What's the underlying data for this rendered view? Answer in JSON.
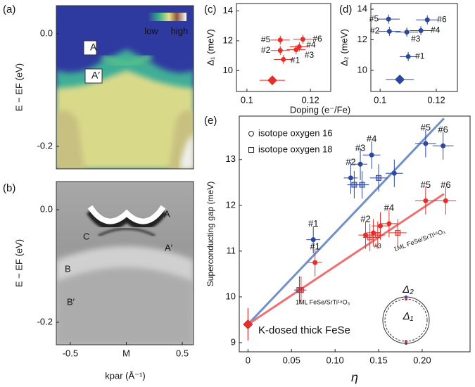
{
  "chart_data": [
    {
      "type": "image",
      "label": "(a)",
      "ylabel": "E − EF (eV)",
      "xlim": [
        -0.625,
        0.6
      ],
      "ylim": [
        -0.24,
        0.05
      ],
      "yticks": [
        {
          "value": 0,
          "label": "0.0"
        },
        {
          "value": -0.2,
          "label": "-0.2"
        }
      ],
      "annotations": [
        {
          "text": "A",
          "color": "#1a2a8a"
        },
        {
          "text": "A′",
          "color": "#1a2a8a"
        }
      ],
      "colorbar": [
        "low",
        "high"
      ]
    },
    {
      "type": "image",
      "label": "(b)",
      "ylabel": "E − EF (eV)",
      "xlabel": "kpar (Å⁻¹)",
      "xlim": [
        -0.625,
        0.6
      ],
      "ylim": [
        -0.24,
        0.05
      ],
      "xticks": [
        {
          "value": -0.5,
          "label": "-0.5"
        },
        {
          "value": 0,
          "label": "M"
        },
        {
          "value": 0.5,
          "label": "0.5"
        }
      ],
      "yticks": [
        {
          "value": 0,
          "label": "0.0"
        },
        {
          "value": -0.2,
          "label": "-0.2"
        }
      ],
      "annotations": [
        {
          "text": "A",
          "color": "#3a4fb0"
        },
        {
          "text": "A′",
          "color": "#3a4fb0"
        },
        {
          "text": "C",
          "color": "#e6d21c"
        },
        {
          "text": "B",
          "color": "#d8322a"
        },
        {
          "text": "B′",
          "color": "#d8322a"
        }
      ]
    },
    {
      "type": "scatter",
      "label": "(c)",
      "ylabel": "Δ₁ (meV)",
      "xlabel": "Doping (e⁻/Fe)",
      "xlim": [
        0.0967,
        0.1264
      ],
      "ylim": [
        8.6,
        14.5
      ],
      "xticks": [
        0.1,
        0.12
      ],
      "yticks": [
        10,
        12,
        14
      ],
      "series": [
        {
          "color": "#e3302a",
          "x": [
            0.1105,
            0.1176,
            0.1105,
            0.1165,
            0.1155,
            0.1115,
            0.108
          ],
          "values": [
            12.05,
            12.1,
            11.35,
            11.6,
            11.4,
            10.75,
            9.35
          ],
          "xerr": [
            0.003,
            0.003,
            0.003,
            0.003,
            0.003,
            0.003,
            0.004
          ],
          "yerr": [
            0.3,
            0.3,
            0.3,
            0.3,
            0.3,
            0.3,
            0.15
          ],
          "markers": [
            "circle",
            "circle",
            "circle",
            "circle",
            "circle",
            "circle",
            "diamond"
          ],
          "point_labels": [
            "#5",
            "#6",
            "#2",
            "#4",
            "#3",
            "#1",
            null
          ]
        }
      ]
    },
    {
      "type": "scatter",
      "label": "(d)",
      "ylabel": "Δ₂ (meV)",
      "xlim": [
        0.0967,
        0.1275
      ],
      "ylim": [
        8.62,
        14.37
      ],
      "xticks": [
        0.1,
        0.12
      ],
      "yticks": [
        10,
        12,
        14
      ],
      "series": [
        {
          "color": "#2c479c",
          "x": [
            0.103,
            0.1168,
            0.1033,
            0.1145,
            0.1095,
            0.11,
            0.107
          ],
          "values": [
            13.35,
            13.3,
            12.55,
            12.6,
            12.5,
            10.9,
            9.4
          ],
          "xerr": [
            0.004,
            0.004,
            0.004,
            0.004,
            0.004,
            0.003,
            0.005
          ],
          "yerr": [
            0.3,
            0.3,
            0.3,
            0.3,
            0.3,
            0.3,
            0.15
          ],
          "markers": [
            "circle",
            "circle",
            "circle",
            "circle",
            "circle",
            "circle",
            "diamond"
          ],
          "point_labels": [
            "#5",
            "#6",
            "#2",
            "#4",
            "#3",
            "#1",
            null
          ]
        }
      ]
    },
    {
      "type": "scatter",
      "label": "(e)",
      "ylabel": "Superconducting gap (meV)",
      "xlabel": "η",
      "xlim": [
        -0.01,
        0.255
      ],
      "ylim": [
        8.8,
        13.95
      ],
      "xticks": [
        0,
        0.05,
        {
          "value": 0.1,
          "label": "0.10"
        },
        0.15,
        {
          "value": 0.2,
          "label": "0.20"
        }
      ],
      "yticks": [
        9,
        10,
        11,
        12,
        13
      ],
      "legend": [
        {
          "label": "isotope oxygen 16",
          "marker": "circle"
        },
        {
          "label": "isotope oxygen 18",
          "marker": "square"
        }
      ],
      "annotations": [
        "1ML FeSe/SrTi¹⁶O₃",
        "1ML FeSe/SrTi¹⁸O₃",
        "K-dosed thick FeSe"
      ],
      "series": [
        {
          "name": "Δ₂",
          "color": "#2c479c",
          "x": [
            0,
            0.059,
            0.075,
            0.118,
            0.122,
            0.129,
            0.131,
            0.142,
            0.15,
            0.168,
            0.204,
            0.224
          ],
          "values": [
            9.4,
            10.15,
            11.25,
            12.6,
            12.45,
            12.9,
            12.45,
            13.1,
            12.6,
            12.7,
            13.35,
            13.3
          ],
          "xerr": [
            0.002,
            0.006,
            0.008,
            0.008,
            0.008,
            0.008,
            0.008,
            0.01,
            0.01,
            0.01,
            0.012,
            0.012
          ],
          "yerr": [
            0.35,
            0.3,
            0.3,
            0.35,
            0.3,
            0.35,
            0.3,
            0.3,
            0.3,
            0.3,
            0.3,
            0.3
          ],
          "markers": [
            "diamond",
            "square",
            "circle",
            "circle",
            "square",
            "circle",
            "square",
            "circle",
            "square",
            "circle",
            "circle",
            "circle"
          ],
          "point_labels": [
            null,
            null,
            "#1",
            "#2",
            null,
            "#3",
            null,
            "#4",
            null,
            null,
            "#5",
            "#6"
          ]
        },
        {
          "name": "Δ₁",
          "color": "#e3302a",
          "x": [
            0,
            0.061,
            0.077,
            0.135,
            0.14,
            0.144,
            0.149,
            0.152,
            0.162,
            0.172,
            0.204,
            0.227
          ],
          "values": [
            9.4,
            10.15,
            10.75,
            11.35,
            11.3,
            11.4,
            11.35,
            11.55,
            11.6,
            11.4,
            12.1,
            12.1
          ],
          "xerr": [
            0.002,
            0.006,
            0.008,
            0.008,
            0.008,
            0.008,
            0.008,
            0.01,
            0.01,
            0.01,
            0.012,
            0.012
          ],
          "yerr": [
            0.35,
            0.3,
            0.3,
            0.3,
            0.3,
            0.3,
            0.3,
            0.3,
            0.3,
            0.3,
            0.3,
            0.3
          ],
          "markers": [
            "diamond",
            "square",
            "circle",
            "circle",
            "square",
            "circle",
            "square",
            "circle",
            "circle",
            "square",
            "circle",
            "circle"
          ],
          "point_labels": [
            null,
            null,
            "#1",
            "#2",
            null,
            null,
            "#3",
            null,
            "#4",
            null,
            "#5",
            "#6"
          ]
        }
      ],
      "fits": [
        {
          "color": "#6f90c8",
          "x": [
            0,
            0.225
          ],
          "values": [
            9.4,
            13.9
          ]
        },
        {
          "color": "#ee7070",
          "x": [
            0,
            0.225
          ],
          "values": [
            9.4,
            12.25
          ]
        }
      ]
    }
  ]
}
